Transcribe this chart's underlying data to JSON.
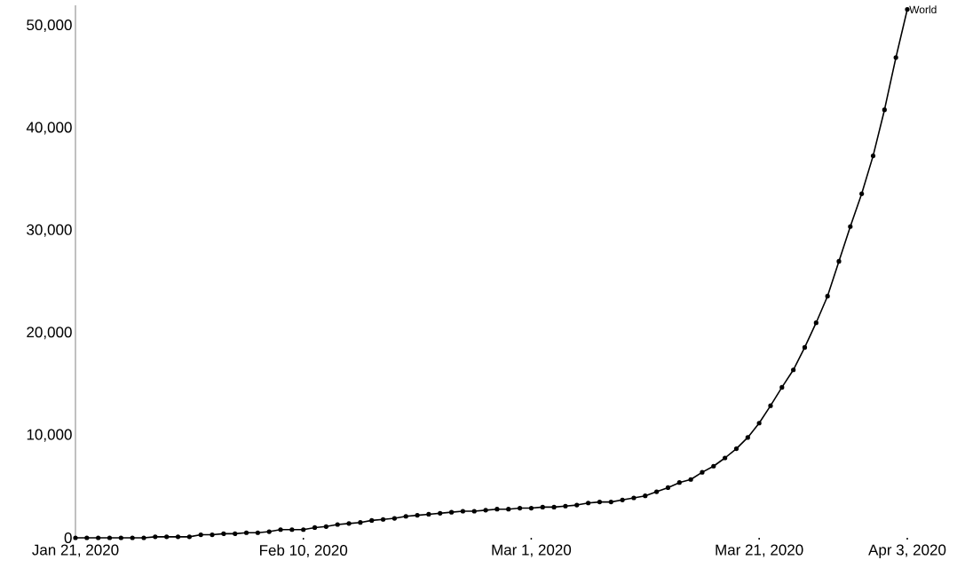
{
  "chart_data": {
    "type": "line",
    "x": [
      "2020-01-21",
      "2020-01-22",
      "2020-01-23",
      "2020-01-24",
      "2020-01-25",
      "2020-01-26",
      "2020-01-27",
      "2020-01-28",
      "2020-01-29",
      "2020-01-30",
      "2020-01-31",
      "2020-02-01",
      "2020-02-02",
      "2020-02-03",
      "2020-02-04",
      "2020-02-05",
      "2020-02-06",
      "2020-02-07",
      "2020-02-08",
      "2020-02-09",
      "2020-02-10",
      "2020-02-11",
      "2020-02-12",
      "2020-02-13",
      "2020-02-14",
      "2020-02-15",
      "2020-02-16",
      "2020-02-17",
      "2020-02-18",
      "2020-02-19",
      "2020-02-20",
      "2020-02-21",
      "2020-02-22",
      "2020-02-23",
      "2020-02-24",
      "2020-02-25",
      "2020-02-26",
      "2020-02-27",
      "2020-02-28",
      "2020-02-29",
      "2020-03-01",
      "2020-03-02",
      "2020-03-03",
      "2020-03-04",
      "2020-03-05",
      "2020-03-06",
      "2020-03-07",
      "2020-03-08",
      "2020-03-09",
      "2020-03-10",
      "2020-03-11",
      "2020-03-12",
      "2020-03-13",
      "2020-03-14",
      "2020-03-15",
      "2020-03-16",
      "2020-03-17",
      "2020-03-18",
      "2020-03-19",
      "2020-03-20",
      "2020-03-21",
      "2020-03-22",
      "2020-03-23",
      "2020-03-24",
      "2020-03-25",
      "2020-03-26",
      "2020-03-27",
      "2020-03-28",
      "2020-03-29",
      "2020-03-30",
      "2020-03-31",
      "2020-04-01",
      "2020-04-02",
      "2020-04-03"
    ],
    "series": [
      {
        "name": "World",
        "color": "#000000",
        "values": [
          0,
          0,
          0,
          0,
          0,
          0,
          0,
          100,
          100,
          100,
          100,
          300,
          300,
          400,
          400,
          500,
          500,
          600,
          800,
          800,
          800,
          1000,
          1100,
          1300,
          1400,
          1500,
          1700,
          1800,
          1900,
          2100,
          2200,
          2300,
          2400,
          2500,
          2600,
          2600,
          2700,
          2800,
          2800,
          2900,
          2900,
          3000,
          3000,
          3100,
          3200,
          3400,
          3500,
          3500,
          3700,
          3900,
          4100,
          4500,
          4900,
          5400,
          5700,
          6400,
          7000,
          7800,
          8700,
          9800,
          11200,
          12900,
          14700,
          16400,
          18600,
          21000,
          23600,
          27000,
          30400,
          33600,
          37300,
          41800,
          46900,
          51600
        ]
      }
    ],
    "xlim": [
      "2020-01-21",
      "2020-04-03"
    ],
    "xticks": [
      {
        "value": "2020-01-21",
        "label": "Jan 21, 2020"
      },
      {
        "value": "2020-02-10",
        "label": "Feb 10, 2020"
      },
      {
        "value": "2020-03-01",
        "label": "Mar 1, 2020"
      },
      {
        "value": "2020-03-21",
        "label": "Mar 21, 2020"
      },
      {
        "value": "2020-04-03",
        "label": "Apr 3, 2020"
      }
    ],
    "ylim": [
      0,
      52000
    ],
    "yticks": [
      0,
      {
        "value": 10000,
        "label": "10,000"
      },
      {
        "value": 20000,
        "label": "20,000"
      },
      {
        "value": 30000,
        "label": "30,000"
      },
      {
        "value": 40000,
        "label": "40,000"
      },
      {
        "value": 50000,
        "label": "50,000"
      }
    ],
    "marker": "circle",
    "line_style": "solid"
  }
}
